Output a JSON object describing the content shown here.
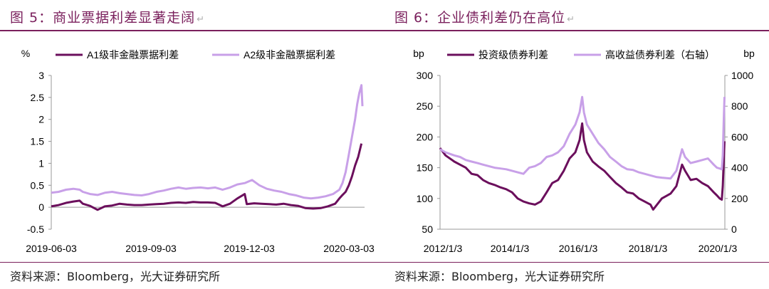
{
  "figures": [
    {
      "title": "图 5：商业票据利差显著走阔",
      "source": "资料来源：Bloomberg，光大证券研究所"
    },
    {
      "title": "图 6：企业债利差仍在高位",
      "source": "资料来源：Bloomberg，光大证券研究所"
    }
  ],
  "chart_data": [
    {
      "type": "line",
      "title": "",
      "ylabel": "%",
      "xlabel": "",
      "ylim": [
        -0.5,
        3
      ],
      "yticks": [
        -0.5,
        0,
        0.5,
        1,
        1.5,
        2,
        2.5,
        3
      ],
      "ytick_labels": [
        "-0.5",
        "0",
        "0.5",
        "1",
        "1.5",
        "2",
        "2.5",
        "3"
      ],
      "xlim": [
        "2019-06-03",
        "2020-03-27"
      ],
      "xtick_labels": [
        "2019-06-03",
        "2019-09-03",
        "2019-12-03",
        "2020-03-03"
      ],
      "legend_position": "top",
      "grid": false,
      "series": [
        {
          "name": "A1级非金融票据利差",
          "color": "#6b0f5c",
          "points": [
            [
              "2019-06-03",
              0.02
            ],
            [
              "2019-06-10",
              0.05
            ],
            [
              "2019-06-17",
              0.1
            ],
            [
              "2019-06-24",
              0.13
            ],
            [
              "2019-06-30",
              0.15
            ],
            [
              "2019-07-03",
              0.08
            ],
            [
              "2019-07-10",
              0.03
            ],
            [
              "2019-07-17",
              -0.06
            ],
            [
              "2019-07-24",
              0.02
            ],
            [
              "2019-07-31",
              0.04
            ],
            [
              "2019-08-07",
              0.08
            ],
            [
              "2019-08-14",
              0.06
            ],
            [
              "2019-08-21",
              0.05
            ],
            [
              "2019-08-28",
              0.05
            ],
            [
              "2019-09-04",
              0.06
            ],
            [
              "2019-09-11",
              0.07
            ],
            [
              "2019-09-18",
              0.08
            ],
            [
              "2019-09-25",
              0.1
            ],
            [
              "2019-10-02",
              0.11
            ],
            [
              "2019-10-09",
              0.1
            ],
            [
              "2019-10-16",
              0.12
            ],
            [
              "2019-10-23",
              0.11
            ],
            [
              "2019-10-30",
              0.11
            ],
            [
              "2019-11-06",
              0.1
            ],
            [
              "2019-11-13",
              0.02
            ],
            [
              "2019-11-20",
              0.08
            ],
            [
              "2019-11-27",
              0.2
            ],
            [
              "2019-12-04",
              0.3
            ],
            [
              "2019-12-06",
              0.07
            ],
            [
              "2019-12-13",
              0.09
            ],
            [
              "2019-12-20",
              0.08
            ],
            [
              "2019-12-27",
              0.07
            ],
            [
              "2020-01-03",
              0.06
            ],
            [
              "2020-01-10",
              0.08
            ],
            [
              "2020-01-17",
              0.05
            ],
            [
              "2020-01-24",
              0.03
            ],
            [
              "2020-01-31",
              -0.02
            ],
            [
              "2020-02-07",
              -0.03
            ],
            [
              "2020-02-14",
              -0.02
            ],
            [
              "2020-02-21",
              0.02
            ],
            [
              "2020-02-28",
              0.08
            ],
            [
              "2020-03-03",
              0.2
            ],
            [
              "2020-03-06",
              0.28
            ],
            [
              "2020-03-09",
              0.35
            ],
            [
              "2020-03-12",
              0.5
            ],
            [
              "2020-03-15",
              0.7
            ],
            [
              "2020-03-18",
              0.95
            ],
            [
              "2020-03-21",
              1.15
            ],
            [
              "2020-03-24",
              1.45
            ]
          ]
        },
        {
          "name": "A2级非金融票据利差",
          "color": "#c8a0e8",
          "points": [
            [
              "2019-06-03",
              0.33
            ],
            [
              "2019-06-10",
              0.35
            ],
            [
              "2019-06-17",
              0.4
            ],
            [
              "2019-06-24",
              0.42
            ],
            [
              "2019-06-30",
              0.4
            ],
            [
              "2019-07-03",
              0.35
            ],
            [
              "2019-07-10",
              0.3
            ],
            [
              "2019-07-17",
              0.28
            ],
            [
              "2019-07-24",
              0.33
            ],
            [
              "2019-07-31",
              0.35
            ],
            [
              "2019-08-07",
              0.32
            ],
            [
              "2019-08-14",
              0.3
            ],
            [
              "2019-08-21",
              0.28
            ],
            [
              "2019-08-28",
              0.27
            ],
            [
              "2019-09-04",
              0.3
            ],
            [
              "2019-09-11",
              0.35
            ],
            [
              "2019-09-18",
              0.38
            ],
            [
              "2019-09-25",
              0.42
            ],
            [
              "2019-10-02",
              0.45
            ],
            [
              "2019-10-09",
              0.42
            ],
            [
              "2019-10-16",
              0.44
            ],
            [
              "2019-10-23",
              0.45
            ],
            [
              "2019-10-30",
              0.43
            ],
            [
              "2019-11-06",
              0.45
            ],
            [
              "2019-11-13",
              0.4
            ],
            [
              "2019-11-20",
              0.45
            ],
            [
              "2019-11-27",
              0.52
            ],
            [
              "2019-12-04",
              0.55
            ],
            [
              "2019-12-11",
              0.62
            ],
            [
              "2019-12-18",
              0.5
            ],
            [
              "2019-12-25",
              0.42
            ],
            [
              "2020-01-01",
              0.38
            ],
            [
              "2020-01-08",
              0.35
            ],
            [
              "2020-01-15",
              0.3
            ],
            [
              "2020-01-22",
              0.27
            ],
            [
              "2020-01-29",
              0.22
            ],
            [
              "2020-02-05",
              0.2
            ],
            [
              "2020-02-12",
              0.22
            ],
            [
              "2020-02-19",
              0.25
            ],
            [
              "2020-02-26",
              0.3
            ],
            [
              "2020-03-03",
              0.4
            ],
            [
              "2020-03-06",
              0.55
            ],
            [
              "2020-03-09",
              0.8
            ],
            [
              "2020-03-12",
              1.2
            ],
            [
              "2020-03-15",
              1.6
            ],
            [
              "2020-03-18",
              2.0
            ],
            [
              "2020-03-20",
              2.35
            ],
            [
              "2020-03-22",
              2.6
            ],
            [
              "2020-03-24",
              2.78
            ],
            [
              "2020-03-25",
              2.3
            ]
          ]
        }
      ]
    },
    {
      "type": "line",
      "title": "",
      "ylabel": "bp",
      "y2label": "bp",
      "xlabel": "",
      "ylim": [
        50,
        300
      ],
      "yticks": [
        50,
        100,
        150,
        200,
        250,
        300
      ],
      "ytick_labels": [
        "50",
        "100",
        "150",
        "200",
        "250",
        "300"
      ],
      "y2lim": [
        0,
        1000
      ],
      "y2ticks": [
        0,
        200,
        400,
        600,
        800,
        1000
      ],
      "y2tick_labels": [
        "0",
        "200",
        "400",
        "600",
        "800",
        "1000"
      ],
      "xlim": [
        "2012-01-03",
        "2020-03-27"
      ],
      "xtick_labels": [
        "2012/1/3",
        "2014/1/3",
        "2016/1/3",
        "2018/1/3",
        "2020/1/3"
      ],
      "legend_position": "top",
      "grid": false,
      "series": [
        {
          "name": "投资级债券利差",
          "axis": "left",
          "color": "#6b0f5c",
          "points": [
            [
              "2012-01-03",
              182
            ],
            [
              "2012-03-01",
              170
            ],
            [
              "2012-06-01",
              160
            ],
            [
              "2012-08-01",
              155
            ],
            [
              "2012-10-01",
              150
            ],
            [
              "2012-12-01",
              140
            ],
            [
              "2013-02-01",
              138
            ],
            [
              "2013-04-01",
              130
            ],
            [
              "2013-06-01",
              125
            ],
            [
              "2013-08-01",
              122
            ],
            [
              "2013-10-01",
              118
            ],
            [
              "2013-12-01",
              115
            ],
            [
              "2014-02-01",
              110
            ],
            [
              "2014-04-01",
              100
            ],
            [
              "2014-06-01",
              95
            ],
            [
              "2014-08-01",
              92
            ],
            [
              "2014-10-01",
              90
            ],
            [
              "2014-12-01",
              95
            ],
            [
              "2015-02-01",
              110
            ],
            [
              "2015-04-01",
              125
            ],
            [
              "2015-06-01",
              130
            ],
            [
              "2015-08-01",
              145
            ],
            [
              "2015-10-01",
              165
            ],
            [
              "2015-12-01",
              175
            ],
            [
              "2016-01-15",
              195
            ],
            [
              "2016-02-11",
              222
            ],
            [
              "2016-03-01",
              195
            ],
            [
              "2016-04-01",
              175
            ],
            [
              "2016-06-01",
              160
            ],
            [
              "2016-08-01",
              152
            ],
            [
              "2016-10-01",
              145
            ],
            [
              "2016-12-01",
              135
            ],
            [
              "2017-02-01",
              125
            ],
            [
              "2017-04-01",
              118
            ],
            [
              "2017-06-01",
              110
            ],
            [
              "2017-08-01",
              108
            ],
            [
              "2017-10-01",
              100
            ],
            [
              "2017-12-01",
              95
            ],
            [
              "2018-02-01",
              90
            ],
            [
              "2018-03-01",
              82
            ],
            [
              "2018-06-01",
              100
            ],
            [
              "2018-09-01",
              108
            ],
            [
              "2018-11-01",
              120
            ],
            [
              "2018-12-31",
              155
            ],
            [
              "2019-02-01",
              145
            ],
            [
              "2019-04-01",
              130
            ],
            [
              "2019-06-01",
              132
            ],
            [
              "2019-08-01",
              125
            ],
            [
              "2019-10-01",
              120
            ],
            [
              "2019-12-01",
              110
            ],
            [
              "2020-01-03",
              105
            ],
            [
              "2020-02-01",
              100
            ],
            [
              "2020-02-24",
              98
            ],
            [
              "2020-03-05",
              120
            ],
            [
              "2020-03-15",
              160
            ],
            [
              "2020-03-23",
              193
            ]
          ]
        },
        {
          "name": "高收益债券利差（右轴）",
          "axis": "right",
          "color": "#c8a0e8",
          "points": [
            [
              "2012-01-03",
              520
            ],
            [
              "2012-03-01",
              500
            ],
            [
              "2012-06-01",
              480
            ],
            [
              "2012-08-01",
              470
            ],
            [
              "2012-10-01",
              450
            ],
            [
              "2012-12-01",
              440
            ],
            [
              "2013-02-01",
              430
            ],
            [
              "2013-04-01",
              420
            ],
            [
              "2013-06-01",
              410
            ],
            [
              "2013-08-01",
              400
            ],
            [
              "2013-10-01",
              395
            ],
            [
              "2013-12-01",
              390
            ],
            [
              "2014-02-01",
              380
            ],
            [
              "2014-04-01",
              370
            ],
            [
              "2014-06-01",
              360
            ],
            [
              "2014-08-01",
              400
            ],
            [
              "2014-10-01",
              410
            ],
            [
              "2014-12-01",
              430
            ],
            [
              "2015-02-01",
              470
            ],
            [
              "2015-04-01",
              480
            ],
            [
              "2015-06-01",
              500
            ],
            [
              "2015-08-01",
              540
            ],
            [
              "2015-10-01",
              620
            ],
            [
              "2015-12-01",
              680
            ],
            [
              "2016-01-15",
              760
            ],
            [
              "2016-02-11",
              860
            ],
            [
              "2016-03-01",
              760
            ],
            [
              "2016-04-01",
              680
            ],
            [
              "2016-06-01",
              620
            ],
            [
              "2016-08-01",
              560
            ],
            [
              "2016-10-01",
              520
            ],
            [
              "2016-12-01",
              470
            ],
            [
              "2017-02-01",
              440
            ],
            [
              "2017-04-01",
              410
            ],
            [
              "2017-06-01",
              390
            ],
            [
              "2017-08-01",
              385
            ],
            [
              "2017-10-01",
              370
            ],
            [
              "2017-12-01",
              360
            ],
            [
              "2018-02-01",
              350
            ],
            [
              "2018-04-01",
              340
            ],
            [
              "2018-06-01",
              335
            ],
            [
              "2018-09-01",
              330
            ],
            [
              "2018-11-01",
              380
            ],
            [
              "2018-12-31",
              520
            ],
            [
              "2019-02-01",
              470
            ],
            [
              "2019-04-01",
              430
            ],
            [
              "2019-06-01",
              440
            ],
            [
              "2019-08-01",
              450
            ],
            [
              "2019-10-01",
              460
            ],
            [
              "2019-12-01",
              420
            ],
            [
              "2020-01-03",
              400
            ],
            [
              "2020-02-01",
              395
            ],
            [
              "2020-02-24",
              390
            ],
            [
              "2020-03-05",
              480
            ],
            [
              "2020-03-15",
              700
            ],
            [
              "2020-03-23",
              860
            ]
          ]
        }
      ]
    }
  ]
}
